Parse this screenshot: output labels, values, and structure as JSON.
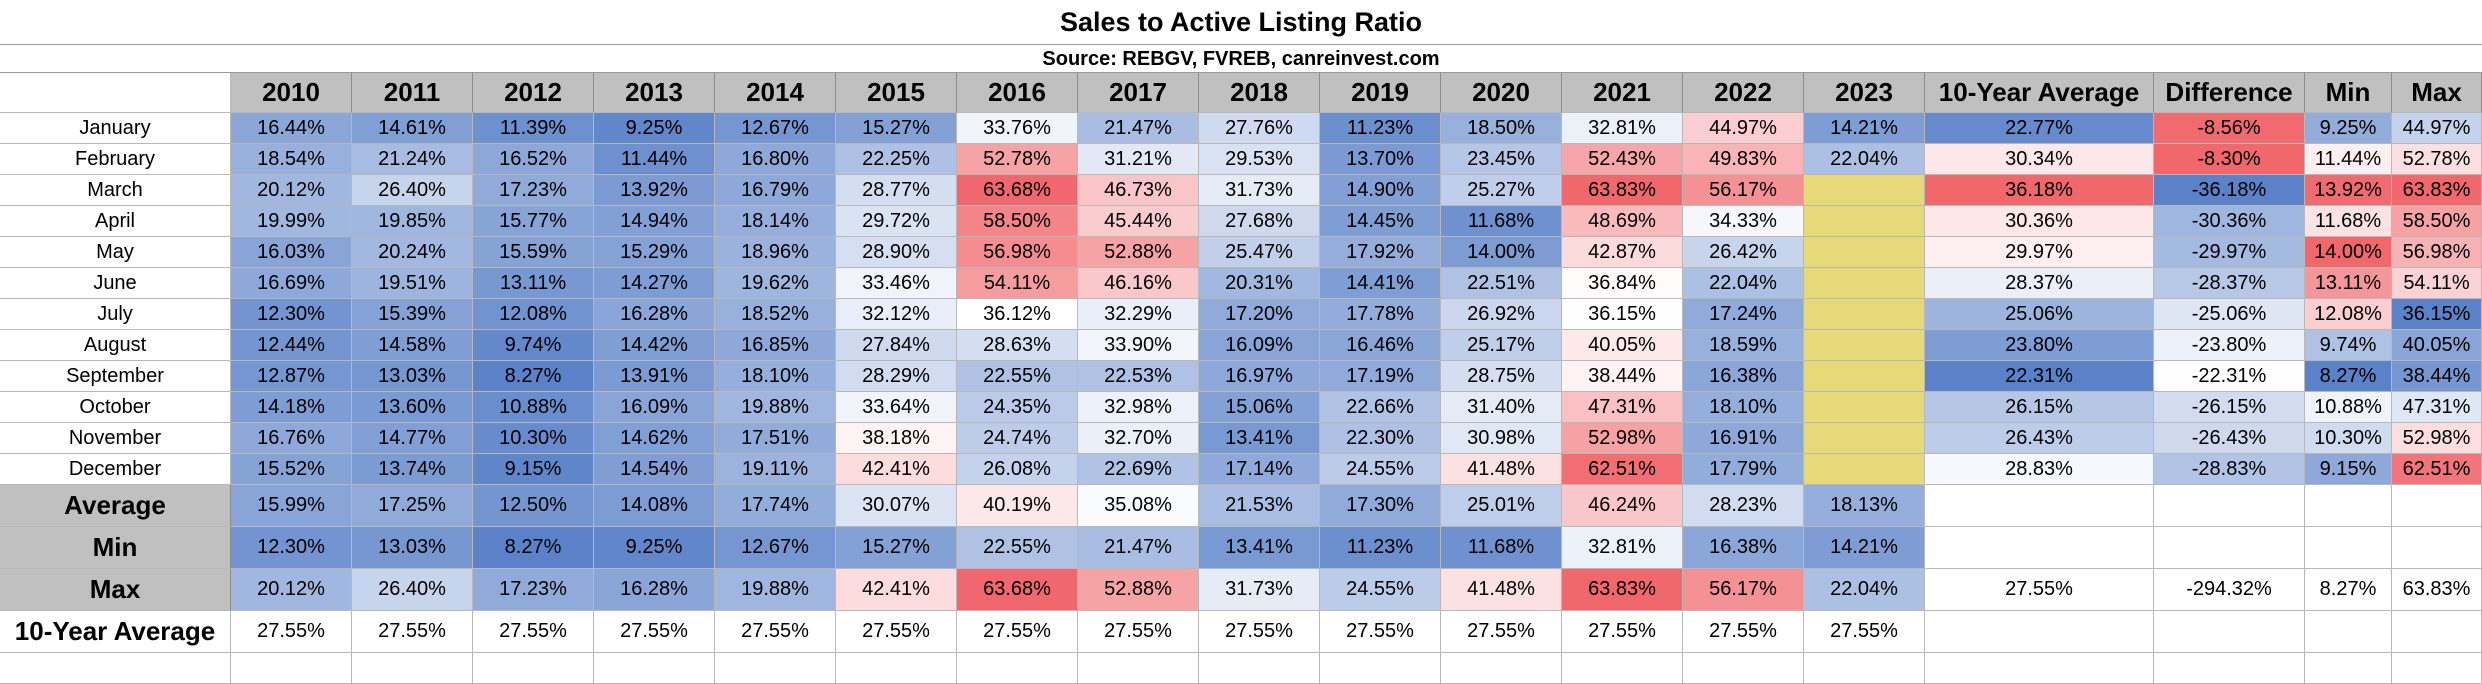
{
  "title": "Sales to Active Listing Ratio",
  "subtitle": "Source: REBGV, FVREB, canreinvest.com",
  "columns": [
    "2010",
    "2011",
    "2012",
    "2013",
    "2014",
    "2015",
    "2016",
    "2017",
    "2018",
    "2019",
    "2020",
    "2021",
    "2022",
    "2023",
    "10-Year Average",
    "Difference",
    "Min",
    "Max"
  ],
  "rows": [
    {
      "label": "January",
      "values": [
        "16.44%",
        "14.61%",
        "11.39%",
        "9.25%",
        "12.67%",
        "15.27%",
        "33.76%",
        "21.47%",
        "27.76%",
        "11.23%",
        "18.50%",
        "32.81%",
        "44.97%",
        "14.21%",
        "22.77%",
        "-8.56%",
        "9.25%",
        "44.97%"
      ]
    },
    {
      "label": "February",
      "values": [
        "18.54%",
        "21.24%",
        "16.52%",
        "11.44%",
        "16.80%",
        "22.25%",
        "52.78%",
        "31.21%",
        "29.53%",
        "13.70%",
        "23.45%",
        "52.43%",
        "49.83%",
        "22.04%",
        "30.34%",
        "-8.30%",
        "11.44%",
        "52.78%"
      ]
    },
    {
      "label": "March",
      "values": [
        "20.12%",
        "26.40%",
        "17.23%",
        "13.92%",
        "16.79%",
        "28.77%",
        "63.68%",
        "46.73%",
        "31.73%",
        "14.90%",
        "25.27%",
        "63.83%",
        "56.17%",
        "",
        "36.18%",
        "-36.18%",
        "13.92%",
        "63.83%"
      ]
    },
    {
      "label": "April",
      "values": [
        "19.99%",
        "19.85%",
        "15.77%",
        "14.94%",
        "18.14%",
        "29.72%",
        "58.50%",
        "45.44%",
        "27.68%",
        "14.45%",
        "11.68%",
        "48.69%",
        "34.33%",
        "",
        "30.36%",
        "-30.36%",
        "11.68%",
        "58.50%"
      ]
    },
    {
      "label": "May",
      "values": [
        "16.03%",
        "20.24%",
        "15.59%",
        "15.29%",
        "18.96%",
        "28.90%",
        "56.98%",
        "52.88%",
        "25.47%",
        "17.92%",
        "14.00%",
        "42.87%",
        "26.42%",
        "",
        "29.97%",
        "-29.97%",
        "14.00%",
        "56.98%"
      ]
    },
    {
      "label": "June",
      "values": [
        "16.69%",
        "19.51%",
        "13.11%",
        "14.27%",
        "19.62%",
        "33.46%",
        "54.11%",
        "46.16%",
        "20.31%",
        "14.41%",
        "22.51%",
        "36.84%",
        "22.04%",
        "",
        "28.37%",
        "-28.37%",
        "13.11%",
        "54.11%"
      ]
    },
    {
      "label": "July",
      "values": [
        "12.30%",
        "15.39%",
        "12.08%",
        "16.28%",
        "18.52%",
        "32.12%",
        "36.12%",
        "32.29%",
        "17.20%",
        "17.78%",
        "26.92%",
        "36.15%",
        "17.24%",
        "",
        "25.06%",
        "-25.06%",
        "12.08%",
        "36.15%"
      ]
    },
    {
      "label": "August",
      "values": [
        "12.44%",
        "14.58%",
        "9.74%",
        "14.42%",
        "16.85%",
        "27.84%",
        "28.63%",
        "33.90%",
        "16.09%",
        "16.46%",
        "25.17%",
        "40.05%",
        "18.59%",
        "",
        "23.80%",
        "-23.80%",
        "9.74%",
        "40.05%"
      ]
    },
    {
      "label": "September",
      "values": [
        "12.87%",
        "13.03%",
        "8.27%",
        "13.91%",
        "18.10%",
        "28.29%",
        "22.55%",
        "22.53%",
        "16.97%",
        "17.19%",
        "28.75%",
        "38.44%",
        "16.38%",
        "",
        "22.31%",
        "-22.31%",
        "8.27%",
        "38.44%"
      ]
    },
    {
      "label": "October",
      "values": [
        "14.18%",
        "13.60%",
        "10.88%",
        "16.09%",
        "19.88%",
        "33.64%",
        "24.35%",
        "32.98%",
        "15.06%",
        "22.66%",
        "31.40%",
        "47.31%",
        "18.10%",
        "",
        "26.15%",
        "-26.15%",
        "10.88%",
        "47.31%"
      ]
    },
    {
      "label": "November",
      "values": [
        "16.76%",
        "14.77%",
        "10.30%",
        "14.62%",
        "17.51%",
        "38.18%",
        "24.74%",
        "32.70%",
        "13.41%",
        "22.30%",
        "30.98%",
        "52.98%",
        "16.91%",
        "",
        "26.43%",
        "-26.43%",
        "10.30%",
        "52.98%"
      ]
    },
    {
      "label": "December",
      "values": [
        "15.52%",
        "13.74%",
        "9.15%",
        "14.54%",
        "19.11%",
        "42.41%",
        "26.08%",
        "22.69%",
        "17.14%",
        "24.55%",
        "41.48%",
        "62.51%",
        "17.79%",
        "",
        "28.83%",
        "-28.83%",
        "9.15%",
        "62.51%"
      ]
    }
  ],
  "summary_rows": [
    {
      "label": "Average",
      "values": [
        "15.99%",
        "17.25%",
        "12.50%",
        "14.08%",
        "17.74%",
        "30.07%",
        "40.19%",
        "35.08%",
        "21.53%",
        "17.30%",
        "25.01%",
        "46.24%",
        "28.23%",
        "18.13%",
        "",
        "",
        "",
        ""
      ]
    },
    {
      "label": "Min",
      "values": [
        "12.30%",
        "13.03%",
        "8.27%",
        "9.25%",
        "12.67%",
        "15.27%",
        "22.55%",
        "21.47%",
        "13.41%",
        "11.23%",
        "11.68%",
        "32.81%",
        "16.38%",
        "14.21%",
        "",
        "",
        "",
        ""
      ]
    },
    {
      "label": "Max",
      "values": [
        "20.12%",
        "26.40%",
        "17.23%",
        "16.28%",
        "19.88%",
        "42.41%",
        "63.68%",
        "52.88%",
        "31.73%",
        "24.55%",
        "41.48%",
        "63.83%",
        "56.17%",
        "22.04%",
        "27.55%",
        "-294.32%",
        "8.27%",
        "63.83%"
      ]
    },
    {
      "label": "10-Year Average",
      "values": [
        "27.55%",
        "27.55%",
        "27.55%",
        "27.55%",
        "27.55%",
        "27.55%",
        "27.55%",
        "27.55%",
        "27.55%",
        "27.55%",
        "27.55%",
        "27.55%",
        "27.55%",
        "27.55%",
        "",
        "",
        "",
        ""
      ]
    }
  ],
  "colors": {
    "header_bg": "#c0c0c0",
    "low": "#5b82c8",
    "mid": "#ffffff",
    "high": "#f0676c",
    "blank_2023": "#e6d97a"
  }
}
